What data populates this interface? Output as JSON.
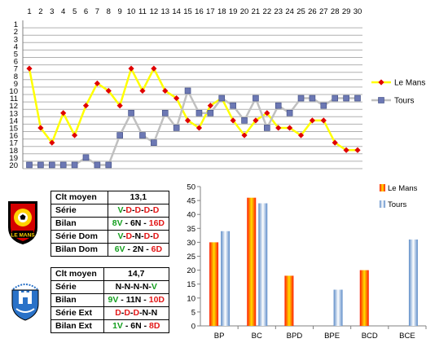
{
  "chart_data": [
    {
      "type": "line",
      "x": [
        1,
        2,
        3,
        4,
        5,
        6,
        7,
        8,
        9,
        10,
        11,
        12,
        13,
        14,
        15,
        16,
        17,
        18,
        19,
        20,
        21,
        22,
        23,
        24,
        25,
        26,
        27,
        28,
        29,
        30
      ],
      "ylim": [
        20,
        1
      ],
      "y_inverted": true,
      "x_ticks": [
        1,
        2,
        3,
        4,
        5,
        6,
        7,
        8,
        9,
        10,
        11,
        12,
        13,
        14,
        15,
        16,
        17,
        18,
        19,
        20,
        21,
        22,
        23,
        24,
        25,
        26,
        27,
        28,
        29,
        30
      ],
      "y_ticks": [
        1,
        2,
        3,
        4,
        5,
        6,
        7,
        8,
        9,
        10,
        11,
        12,
        13,
        14,
        15,
        16,
        17,
        18,
        19,
        20
      ],
      "grid": "horizontal",
      "legend_position": "right",
      "series": [
        {
          "name": "Le Mans",
          "color": "#ffff00",
          "marker": "diamond",
          "marker_color": "#e00000",
          "values": [
            7,
            15,
            17,
            13,
            16,
            12,
            9,
            10,
            12,
            7,
            10,
            7,
            10,
            11,
            14,
            15,
            12,
            11,
            14,
            16,
            14,
            13,
            15,
            15,
            16,
            14,
            14,
            17,
            18,
            18
          ]
        },
        {
          "name": "Tours",
          "color": "#c0c0c0",
          "marker": "square",
          "marker_color": "#6c78b4",
          "values": [
            20,
            20,
            20,
            20,
            20,
            19,
            20,
            20,
            16,
            13,
            16,
            17,
            13,
            15,
            10,
            13,
            13,
            11,
            12,
            14,
            11,
            15,
            12,
            13,
            11,
            11,
            12,
            11,
            11,
            11
          ]
        }
      ]
    },
    {
      "type": "bar",
      "categories": [
        "BP",
        "BC",
        "BPD",
        "BPE",
        "BCD",
        "BCE"
      ],
      "ylim": [
        0,
        50
      ],
      "y_ticks": [
        0,
        5,
        10,
        15,
        20,
        25,
        30,
        35,
        40,
        45,
        50
      ],
      "legend_position": "top-right",
      "series": [
        {
          "name": "Le Mans",
          "color": "#ff0000",
          "values": [
            30,
            46,
            18,
            null,
            20,
            null
          ]
        },
        {
          "name": "Tours",
          "color": "#6d9ad0",
          "values": [
            34,
            44,
            null,
            13,
            null,
            31
          ]
        }
      ]
    }
  ],
  "table1": {
    "rows": [
      {
        "label": "Clt moyen",
        "parts": [
          {
            "t": "13,1",
            "c": "k"
          }
        ]
      },
      {
        "label": "Série",
        "parts": [
          {
            "t": "V",
            "c": "g"
          },
          {
            "t": "-",
            "c": "k"
          },
          {
            "t": "D",
            "c": "r"
          },
          {
            "t": "-",
            "c": "k"
          },
          {
            "t": "D",
            "c": "r"
          },
          {
            "t": "-",
            "c": "k"
          },
          {
            "t": "D",
            "c": "r"
          },
          {
            "t": "-",
            "c": "k"
          },
          {
            "t": "D",
            "c": "r"
          }
        ]
      },
      {
        "label": "Bilan",
        "parts": [
          {
            "t": "8V",
            "c": "g"
          },
          {
            "t": " - 6N - ",
            "c": "k"
          },
          {
            "t": "16D",
            "c": "r"
          }
        ]
      },
      {
        "label": "Série Dom",
        "parts": [
          {
            "t": "V",
            "c": "g"
          },
          {
            "t": "-",
            "c": "k"
          },
          {
            "t": "D",
            "c": "r"
          },
          {
            "t": "-N-",
            "c": "k"
          },
          {
            "t": "D",
            "c": "r"
          },
          {
            "t": "-",
            "c": "k"
          },
          {
            "t": "D",
            "c": "r"
          }
        ]
      },
      {
        "label": "Bilan Dom",
        "parts": [
          {
            "t": "6V",
            "c": "g"
          },
          {
            "t": " - 2N - ",
            "c": "k"
          },
          {
            "t": "6D",
            "c": "r"
          }
        ]
      }
    ]
  },
  "table2": {
    "rows": [
      {
        "label": "Clt moyen",
        "parts": [
          {
            "t": "14,7",
            "c": "k"
          }
        ]
      },
      {
        "label": "Série",
        "parts": [
          {
            "t": "N-N-N-N-",
            "c": "k"
          },
          {
            "t": "V",
            "c": "g"
          }
        ]
      },
      {
        "label": "Bilan",
        "parts": [
          {
            "t": "9V",
            "c": "g"
          },
          {
            "t": " - 11N - ",
            "c": "k"
          },
          {
            "t": "10D",
            "c": "r"
          }
        ]
      },
      {
        "label": "Série Ext",
        "parts": [
          {
            "t": "D",
            "c": "r"
          },
          {
            "t": "-",
            "c": "k"
          },
          {
            "t": "D",
            "c": "r"
          },
          {
            "t": "-",
            "c": "k"
          },
          {
            "t": "D",
            "c": "r"
          },
          {
            "t": "-N-N",
            "c": "k"
          }
        ]
      },
      {
        "label": "Bilan Ext",
        "parts": [
          {
            "t": "1V",
            "c": "g"
          },
          {
            "t": " - 6N - ",
            "c": "k"
          },
          {
            "t": "8D",
            "c": "r"
          }
        ]
      }
    ]
  },
  "logos": {
    "lemans": {
      "text": "LE MANS",
      "colors": [
        "#ffd200",
        "#d40000",
        "#000000"
      ]
    },
    "tours": {
      "colors": [
        "#2a72c8",
        "#000000",
        "#ffffff"
      ]
    }
  }
}
